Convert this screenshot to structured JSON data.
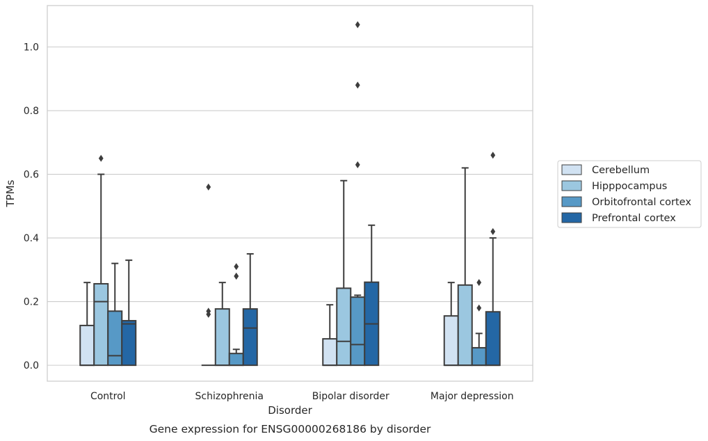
{
  "chart_data": {
    "type": "boxplot",
    "title": "Gene expression for ENSG00000268186 by disorder",
    "xlabel": "Disorder",
    "ylabel": "TPMs",
    "ylim": [
      -0.05,
      1.13
    ],
    "yticks": [
      0.0,
      0.2,
      0.4,
      0.6,
      0.8,
      1.0
    ],
    "ytick_labels": [
      "0.0",
      "0.2",
      "0.4",
      "0.6",
      "0.8",
      "1.0"
    ],
    "grid": "horizontal",
    "legend_position": "right",
    "categories": [
      "Control",
      "Schizophrenia",
      "Bipolar disorder",
      "Major depression"
    ],
    "series": [
      {
        "name": "Cerebellum",
        "color": "#d1e2f2",
        "boxes": [
          {
            "q1": 0.0,
            "median": 0.0,
            "q3": 0.125,
            "whisker_low": 0.0,
            "whisker_high": 0.26,
            "outliers": []
          },
          {
            "q1": 0.0,
            "median": 0.0,
            "q3": 0.0,
            "whisker_low": 0.0,
            "whisker_high": 0.0,
            "outliers": [
              0.16,
              0.17,
              0.56
            ]
          },
          {
            "q1": 0.0,
            "median": 0.0,
            "q3": 0.083,
            "whisker_low": 0.0,
            "whisker_high": 0.19,
            "outliers": []
          },
          {
            "q1": 0.0,
            "median": 0.0,
            "q3": 0.155,
            "whisker_low": 0.0,
            "whisker_high": 0.26,
            "outliers": []
          }
        ]
      },
      {
        "name": "Hipppocampus",
        "color": "#9bc7e0",
        "boxes": [
          {
            "q1": 0.0,
            "median": 0.2,
            "q3": 0.256,
            "whisker_low": 0.0,
            "whisker_high": 0.6,
            "outliers": [
              0.65
            ]
          },
          {
            "q1": 0.0,
            "median": 0.0,
            "q3": 0.177,
            "whisker_low": 0.0,
            "whisker_high": 0.26,
            "outliers": []
          },
          {
            "q1": 0.0,
            "median": 0.075,
            "q3": 0.242,
            "whisker_low": 0.0,
            "whisker_high": 0.58,
            "outliers": []
          },
          {
            "q1": 0.0,
            "median": 0.0,
            "q3": 0.252,
            "whisker_low": 0.0,
            "whisker_high": 0.62,
            "outliers": []
          }
        ]
      },
      {
        "name": "Orbitofrontal cortex",
        "color": "#5799c6",
        "boxes": [
          {
            "q1": 0.0,
            "median": 0.03,
            "q3": 0.17,
            "whisker_low": 0.0,
            "whisker_high": 0.32,
            "outliers": []
          },
          {
            "q1": 0.0,
            "median": 0.0,
            "q3": 0.037,
            "whisker_low": 0.0,
            "whisker_high": 0.05,
            "outliers": [
              0.28,
              0.28,
              0.31
            ]
          },
          {
            "q1": 0.0,
            "median": 0.065,
            "q3": 0.214,
            "whisker_low": 0.0,
            "whisker_high": 0.22,
            "outliers": [
              0.63,
              0.88,
              1.07
            ]
          },
          {
            "q1": 0.0,
            "median": 0.0,
            "q3": 0.055,
            "whisker_low": 0.0,
            "whisker_high": 0.1,
            "outliers": [
              0.18,
              0.26
            ]
          }
        ]
      },
      {
        "name": "Prefrontal cortex",
        "color": "#2467a5",
        "boxes": [
          {
            "q1": 0.0,
            "median": 0.13,
            "q3": 0.14,
            "whisker_low": 0.0,
            "whisker_high": 0.33,
            "outliers": []
          },
          {
            "q1": 0.0,
            "median": 0.117,
            "q3": 0.177,
            "whisker_low": 0.0,
            "whisker_high": 0.35,
            "outliers": []
          },
          {
            "q1": 0.0,
            "median": 0.13,
            "q3": 0.261,
            "whisker_low": 0.0,
            "whisker_high": 0.44,
            "outliers": []
          },
          {
            "q1": 0.0,
            "median": 0.0,
            "q3": 0.168,
            "whisker_low": 0.0,
            "whisker_high": 0.4,
            "outliers": [
              0.42,
              0.66
            ]
          }
        ]
      }
    ]
  }
}
